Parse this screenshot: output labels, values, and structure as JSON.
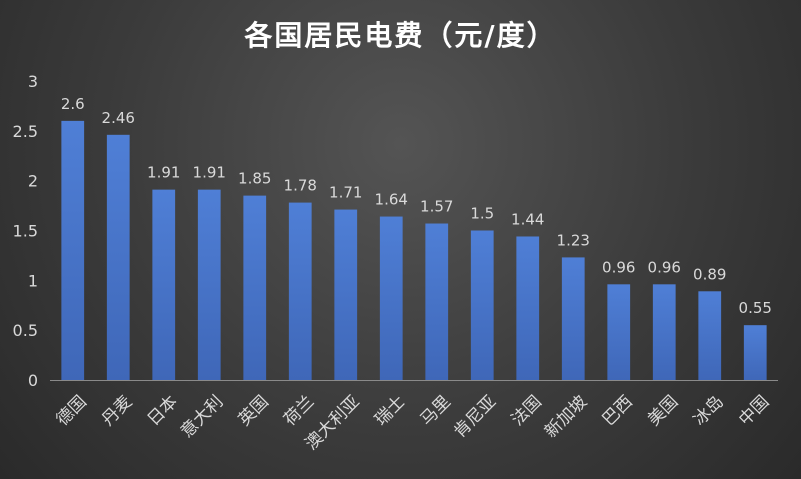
{
  "chart_data": {
    "type": "bar",
    "title": "各国居民电费（元/度）",
    "xlabel": "",
    "ylabel": "",
    "ylim": [
      0,
      3
    ],
    "yticks": [
      0,
      0.5,
      1,
      1.5,
      2,
      2.5,
      3
    ],
    "ytick_labels": [
      "0",
      "0.5",
      "1",
      "1.5",
      "2",
      "2.5",
      "3"
    ],
    "grid": false,
    "legend": "none",
    "bar_color": "#4472c4",
    "categories": [
      "德国",
      "丹麦",
      "日本",
      "意大利",
      "英国",
      "荷兰",
      "澳大利亚",
      "瑞士",
      "马里",
      "肯尼亚",
      "法国",
      "新加坡",
      "巴西",
      "美国",
      "冰岛",
      "中国"
    ],
    "values": [
      2.6,
      2.46,
      1.91,
      1.91,
      1.85,
      1.78,
      1.71,
      1.64,
      1.57,
      1.5,
      1.44,
      1.23,
      0.96,
      0.96,
      0.89,
      0.55
    ],
    "value_labels": [
      "2.6",
      "2.46",
      "1.91",
      "1.91",
      "1.85",
      "1.78",
      "1.71",
      "1.64",
      "1.57",
      "1.5",
      "1.44",
      "1.23",
      "0.96",
      "0.96",
      "0.89",
      "0.55"
    ]
  },
  "colors": {
    "background_center": "#545454",
    "background_edge": "#2a2a2a",
    "bar_top": "#4f7fd6",
    "bar_bottom": "#3f67b8",
    "text": "#d9d9d9",
    "title": "#ffffff"
  }
}
